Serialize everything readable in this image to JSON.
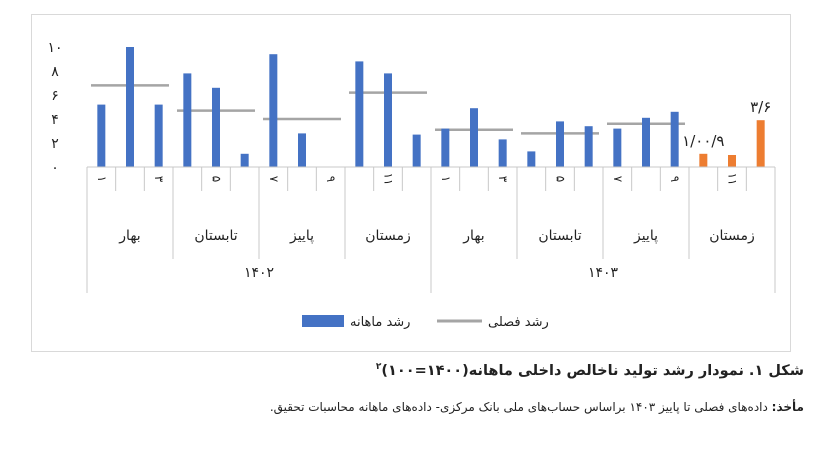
{
  "chart_data": {
    "type": "bar",
    "yticks": [
      "۰",
      "۲",
      "۴",
      "۶",
      "۸",
      "۱۰"
    ],
    "ylim": [
      0,
      10
    ],
    "grid": false,
    "legend_position": "bottom",
    "colors": {
      "monthly": "#4472C4",
      "seasonal": "#A5A5A5",
      "estimate": "#ED7D31"
    },
    "series": [
      {
        "name": "رشد ماهانه",
        "type": "bar",
        "values": [
          5.2,
          10.0,
          5.2,
          7.8,
          6.6,
          1.1,
          9.4,
          2.8,
          0,
          8.8,
          7.8,
          2.7,
          3.2,
          4.9,
          2.3,
          1.3,
          3.8,
          3.4,
          3.2,
          4.1,
          4.6,
          1.1,
          1.0,
          3.9
        ]
      },
      {
        "name": "رشد فصلی",
        "type": "segment",
        "segments": [
          {
            "from": 0,
            "to": 2,
            "value": 6.8
          },
          {
            "from": 3,
            "to": 5,
            "value": 4.7
          },
          {
            "from": 6,
            "to": 8,
            "value": 4.0
          },
          {
            "from": 9,
            "to": 11,
            "value": 6.2
          },
          {
            "from": 12,
            "to": 14,
            "value": 3.1
          },
          {
            "from": 15,
            "to": 17,
            "value": 2.8
          },
          {
            "from": 18,
            "to": 20,
            "value": 3.6
          }
        ]
      }
    ],
    "estimate_bars_from_index": 21,
    "data_labels": [
      {
        "text": "۱/۰۰/۹",
        "index": 21
      },
      {
        "text": "۳/۶",
        "index": 23
      }
    ],
    "month_ticks": [
      "۱",
      "",
      "۳",
      "",
      "۵",
      "",
      "۷",
      "",
      "۹",
      "",
      "۱۱",
      "",
      "۱",
      "",
      "۳",
      "",
      "۵",
      "",
      "۷",
      "",
      "۹",
      "",
      "۱۱",
      ""
    ],
    "seasons": [
      "بهار",
      "تابستان",
      "پاییز",
      "زمستان",
      "بهار",
      "تابستان",
      "پاییز",
      "زمستان"
    ],
    "years": [
      "۱۴۰۲",
      "۱۴۰۳"
    ]
  },
  "caption": {
    "text": "شکل ۱. نمودار رشد تولید ناخالص داخلی ماهانه(۱۴۰۰=۱۰۰)",
    "note": "۲"
  },
  "source": {
    "label": "مأخذ:",
    "text": " داده‌های فصلی تا پاییز ۱۴۰۳ براساس حساب‌های ملی بانک مرکزی- داده‌های ماهانه محاسبات تحقیق."
  }
}
